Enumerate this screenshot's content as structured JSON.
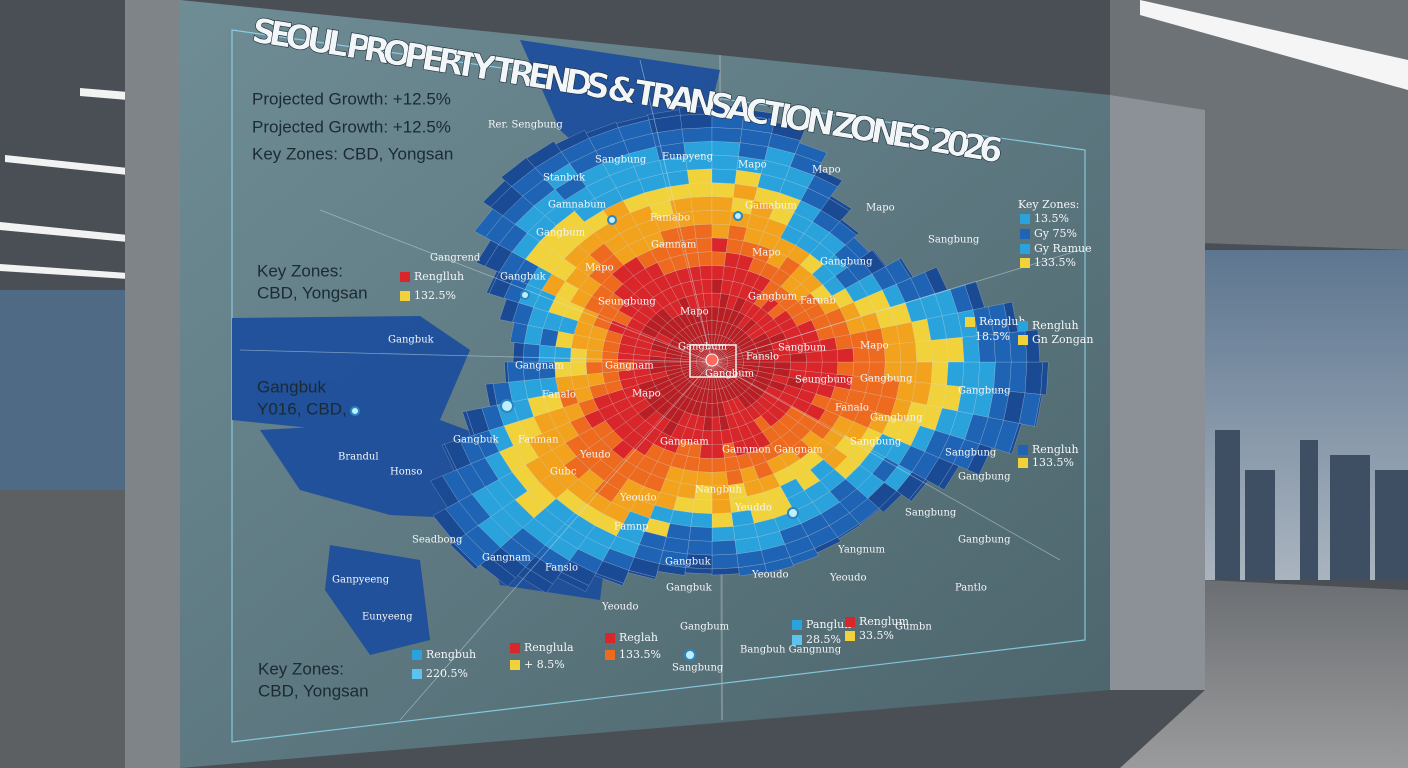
{
  "title": "SEOUL PROPERTY TRENDS & TRANSACTION ZONES 2026",
  "text_blocks": [
    "Projected Growth: +12.5%",
    "Projected Growth: +12.5%",
    "Key Zones: CBD, Yongsan",
    "Key Zones:",
    "CBD, Yongsan",
    "Gangbuk",
    "Y016, CBD,",
    "Key Zones:",
    "CBD, Yongsan"
  ],
  "legend_items": [
    "Renglluh",
    "132.5%",
    "Key Zones:",
    "13.5%",
    "Gy 75%",
    "Gy Ramue",
    "133.5%",
    "Rengluh",
    "18.5%",
    "Rengluh",
    "Gn Zongan",
    "Rengluh",
    "133.5%",
    "Rengbuh",
    "220.5%",
    "Renglula",
    "+ 8.5%",
    "Reglah",
    "133.5%",
    "Pangluh",
    "28.5%",
    "Renglum",
    "33.5%"
  ],
  "districts": [
    "Rer. Sengbung",
    "Sangbung",
    "Eunpyeng",
    "Mapo",
    "Mapo",
    "Stanbuk",
    "Gamnabum",
    "Famabo",
    "Gamabum",
    "Mapo",
    "Gangbum",
    "Gamnam",
    "Mapo",
    "Gangbung",
    "Sangbung",
    "Gangrend",
    "Gangbuk",
    "Mapo",
    "Seungbung",
    "Gangbum",
    "Faruab",
    "Mapo",
    "Gangbuk",
    "Gangbum",
    "Fanslo",
    "Sangbum",
    "Mapo",
    "Gangnam",
    "Gangnam",
    "Gangbum",
    "Seungbung",
    "Gangbung",
    "Fanalo",
    "Mapo",
    "Gangbung",
    "Fanalo",
    "Gangbuk",
    "Fanman",
    "Gangnam",
    "Gannmon Gangnam",
    "Sangbung",
    "Gangbung",
    "Brandul",
    "Yeudo",
    "Sangbung",
    "Honso",
    "Gubc",
    "Gangbung",
    "Yeoudo",
    "Nangbuh",
    "Yeuddo",
    "Sangbung",
    "Seadbong",
    "Famnp",
    "Gangbung",
    "Yangnum",
    "Gangnam",
    "Fanslo",
    "Gangbuk",
    "Yeoudo",
    "Yeoudo",
    "Pantlo",
    "Ganpyeeng",
    "Gangbuk",
    "Yeoudo",
    "Eunyeeng",
    "Gangbum",
    "Gumbn",
    "Sangbung",
    "Bangbuh Gangnung"
  ]
}
